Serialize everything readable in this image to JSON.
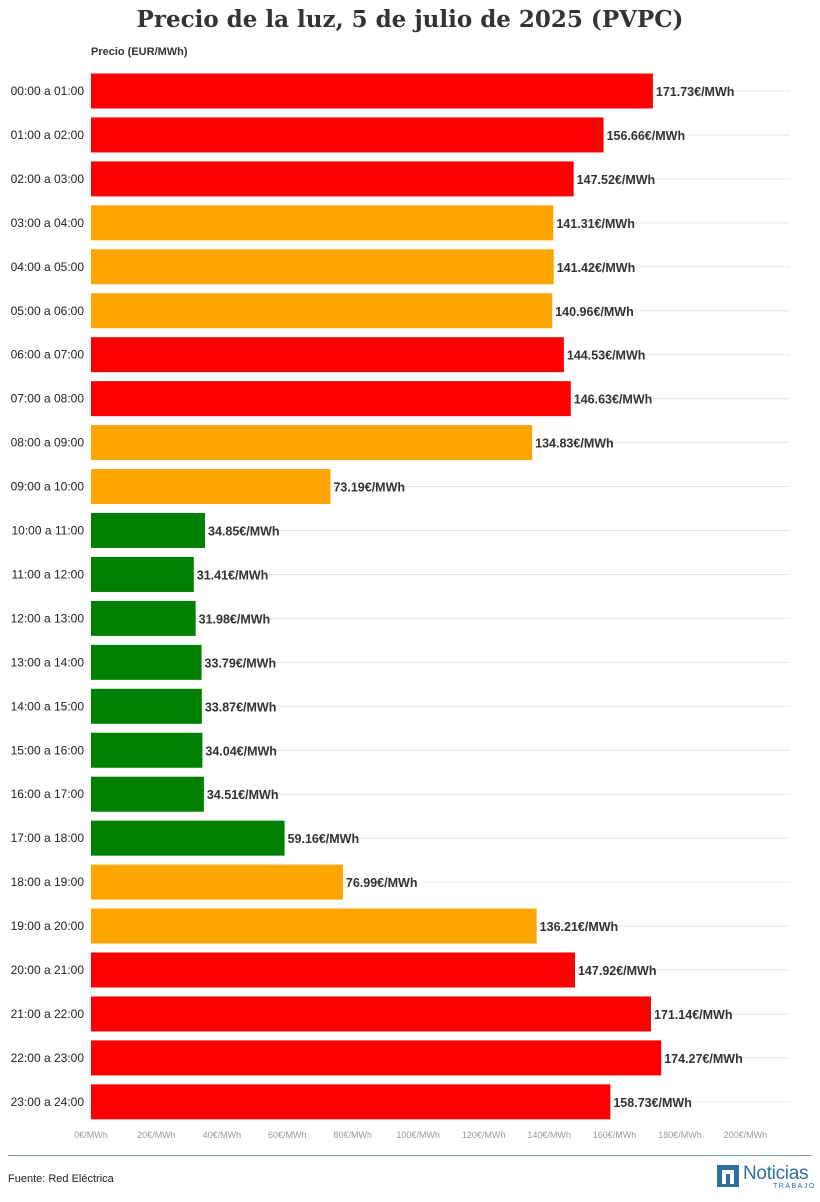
{
  "header": {
    "title": "Precio de la luz, 5 de julio de 2025 (PVPC)"
  },
  "footer": {
    "source": "Fuente: Red Eléctrica",
    "brand": "Noticias",
    "brand_sub": "TRABAJO"
  },
  "colors": {
    "high": "#ff0000",
    "mid": "#ffa500",
    "low": "#008000",
    "grid": "#e6e6e6",
    "tick": "#999999"
  },
  "chart_data": {
    "type": "bar",
    "orientation": "horizontal",
    "title": "Precio de la luz, 5 de julio de 2025 (PVPC)",
    "xlabel": "Precio (EUR/MWh)",
    "ylabel": "",
    "xlim": [
      0,
      200
    ],
    "grid": true,
    "value_suffix": "€/MWh",
    "tick_values": [
      0,
      20,
      40,
      60,
      80,
      100,
      120,
      140,
      160,
      180,
      200
    ],
    "tick_labels": [
      "0€/MWh",
      "20€/MWh",
      "40€/MWh",
      "60€/MWh",
      "80€/MWh",
      "100€/MWh",
      "120€/MWh",
      "140€/MWh",
      "160€/MWh",
      "180€/MWh",
      "200€/MWh"
    ],
    "categories": [
      "00:00 a 01:00",
      "01:00 a 02:00",
      "02:00 a 03:00",
      "03:00 a 04:00",
      "04:00 a 05:00",
      "05:00 a 06:00",
      "06:00 a 07:00",
      "07:00 a 08:00",
      "08:00 a 09:00",
      "09:00 a 10:00",
      "10:00 a 11:00",
      "11:00 a 12:00",
      "12:00 a 13:00",
      "13:00 a 14:00",
      "14:00 a 15:00",
      "15:00 a 16:00",
      "16:00 a 17:00",
      "17:00 a 18:00",
      "18:00 a 19:00",
      "19:00 a 20:00",
      "20:00 a 21:00",
      "21:00 a 22:00",
      "22:00 a 23:00",
      "23:00 a 24:00"
    ],
    "values": [
      171.73,
      156.66,
      147.52,
      141.31,
      141.42,
      140.96,
      144.53,
      146.63,
      134.83,
      73.19,
      34.85,
      31.41,
      31.98,
      33.79,
      33.87,
      34.04,
      34.51,
      59.16,
      76.99,
      136.21,
      147.92,
      171.14,
      174.27,
      158.73
    ],
    "value_labels": [
      "171.73€/MWh",
      "156.66€/MWh",
      "147.52€/MWh",
      "141.31€/MWh",
      "141.42€/MWh",
      "140.96€/MWh",
      "144.53€/MWh",
      "146.63€/MWh",
      "134.83€/MWh",
      "73.19€/MWh",
      "34.85€/MWh",
      "31.41€/MWh",
      "31.98€/MWh",
      "33.79€/MWh",
      "33.87€/MWh",
      "34.04€/MWh",
      "34.51€/MWh",
      "59.16€/MWh",
      "76.99€/MWh",
      "136.21€/MWh",
      "147.92€/MWh",
      "171.14€/MWh",
      "174.27€/MWh",
      "158.73€/MWh"
    ],
    "bar_color_levels": [
      "high",
      "high",
      "high",
      "mid",
      "mid",
      "mid",
      "high",
      "high",
      "mid",
      "mid",
      "low",
      "low",
      "low",
      "low",
      "low",
      "low",
      "low",
      "low",
      "mid",
      "mid",
      "high",
      "high",
      "high",
      "high"
    ]
  }
}
